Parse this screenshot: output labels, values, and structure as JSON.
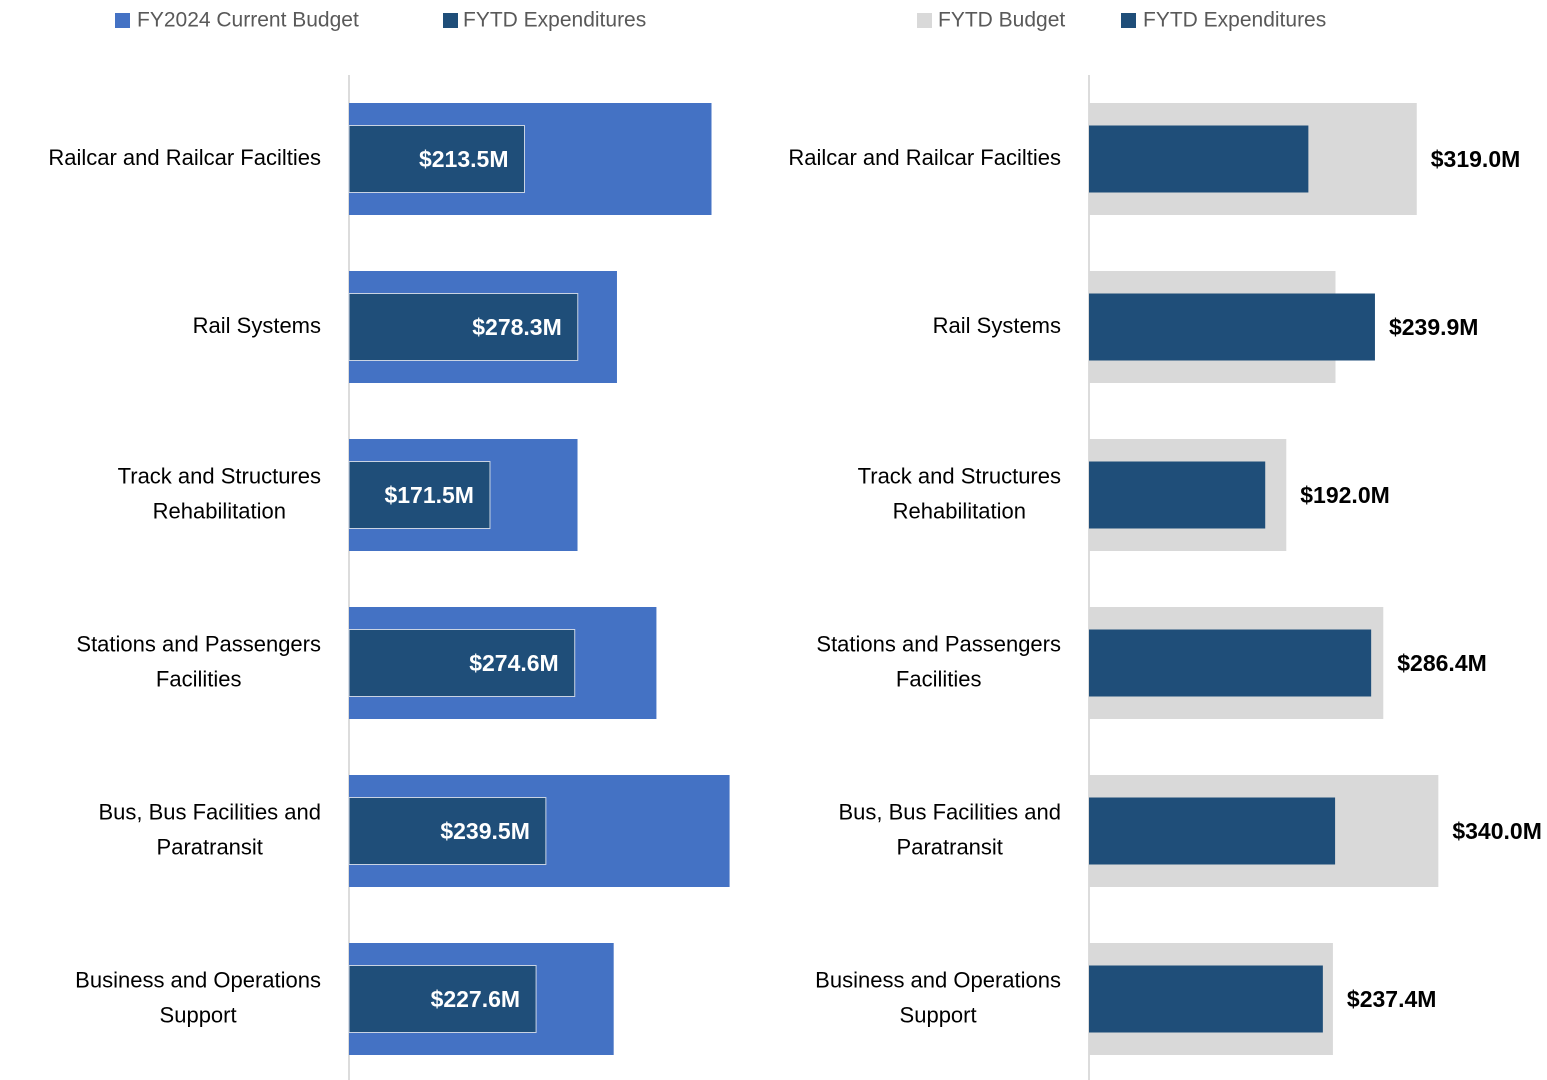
{
  "chart_data": [
    {
      "type": "bar",
      "orientation": "horizontal",
      "categories": [
        "Railcar and Railcar Facilties",
        "Rail Systems",
        "Track and Structures Rehabilitation",
        "Stations and Passengers Facilities",
        "Bus, Bus Facilities and Paratransit",
        "Business and Operations Support"
      ],
      "series": [
        {
          "name": "FY2024 Current Budget",
          "color": "#4472c4",
          "values": [
            441,
            326,
            278,
            374,
            463,
            322
          ]
        },
        {
          "name": "FYTD Expenditures",
          "color": "#1f4e79",
          "values": [
            213.5,
            278.3,
            171.5,
            274.6,
            239.5,
            227.6
          ],
          "value_labels": [
            "$213.5M",
            "$278.3M",
            "$171.5M",
            "$274.6M",
            "$239.5M",
            "$227.6M"
          ]
        }
      ],
      "xlim": [
        0,
        500
      ]
    },
    {
      "type": "bar",
      "orientation": "horizontal",
      "categories": [
        "Railcar and Railcar Facilties",
        "Rail Systems",
        "Track and Structures Rehabilitation",
        "Stations and Passengers Facilities",
        "Bus, Bus Facilities and Paratransit",
        "Business and Operations Support"
      ],
      "series": [
        {
          "name": "FYTD Budget",
          "color": "#d9d9d9",
          "values": [
            319.0,
            239.9,
            192.0,
            286.4,
            340.0,
            237.4
          ],
          "value_labels": [
            "$319.0M",
            "$239.9M",
            "$192.0M",
            "$286.4M",
            "$340.0M",
            "$237.4M"
          ]
        },
        {
          "name": "FYTD Expenditures",
          "color": "#1f4e79",
          "values": [
            213.5,
            278.3,
            171.5,
            274.6,
            239.5,
            227.6
          ]
        }
      ],
      "xlim": [
        0,
        400
      ]
    }
  ]
}
